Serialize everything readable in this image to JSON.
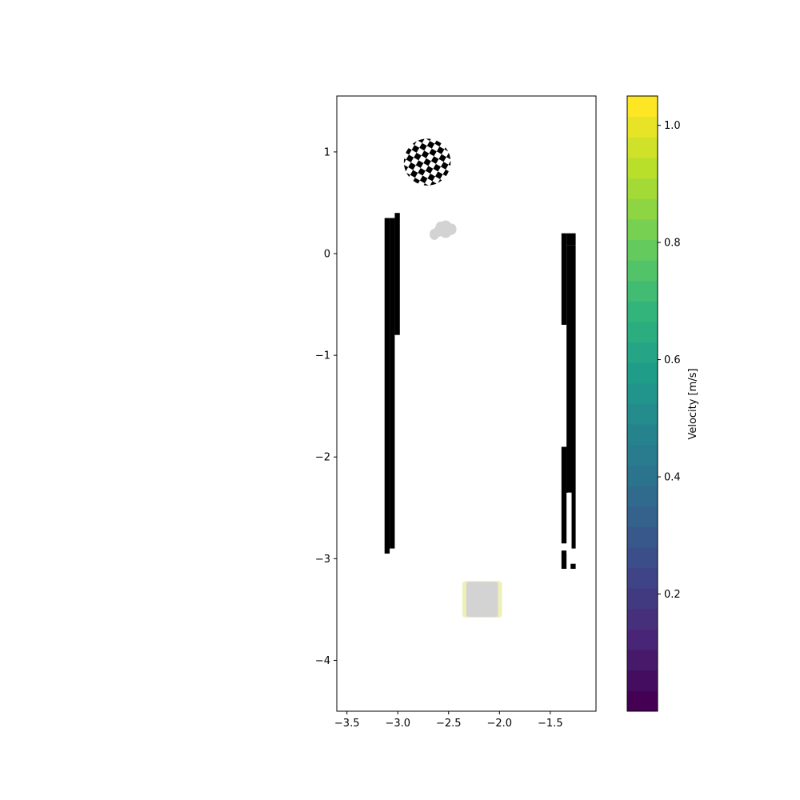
{
  "chart_data": {
    "type": "scatter",
    "title": "",
    "xlabel": "",
    "ylabel": "",
    "xlim": [
      -3.6,
      -1.05
    ],
    "ylim": [
      -4.5,
      1.55
    ],
    "grid": false,
    "x_ticks": [
      -3.5,
      -3.0,
      -2.5,
      -2.0,
      -1.5
    ],
    "x_tick_labels": [
      "−3.5",
      "−3.0",
      "−2.5",
      "−2.0",
      "−1.5"
    ],
    "y_ticks": [
      1,
      0,
      -1,
      -2,
      -3,
      -4
    ],
    "y_tick_labels": [
      "1",
      "0",
      "−1",
      "−2",
      "−3",
      "−4"
    ],
    "occupancy_obstacles": [
      {
        "x": [
          -3.13,
          -3.08
        ],
        "y": [
          -2.95,
          0.35
        ]
      },
      {
        "x": [
          -3.08,
          -3.03
        ],
        "y": [
          -2.9,
          0.35
        ]
      },
      {
        "x": [
          -3.03,
          -2.98
        ],
        "y": [
          -0.8,
          0.4
        ]
      },
      {
        "x": [
          -1.39,
          -1.34
        ],
        "y": [
          -0.7,
          0.2
        ]
      },
      {
        "x": [
          -1.34,
          -1.25
        ],
        "y": [
          0.08,
          0.2
        ]
      },
      {
        "x": [
          -1.34,
          -1.25
        ],
        "y": [
          -0.7,
          0.08
        ]
      },
      {
        "x": [
          -1.34,
          -1.29
        ],
        "y": [
          -2.35,
          -0.7
        ]
      },
      {
        "x": [
          -1.29,
          -1.25
        ],
        "y": [
          -2.9,
          -0.7
        ]
      },
      {
        "x": [
          -1.39,
          -1.34
        ],
        "y": [
          -2.85,
          -1.9
        ]
      },
      {
        "x": [
          -1.34,
          -1.32
        ],
        "y": [
          -2.35,
          -1.9
        ]
      },
      {
        "x": [
          -1.39,
          -1.34
        ],
        "y": [
          -3.1,
          -2.92
        ]
      },
      {
        "x": [
          -1.3,
          -1.25
        ],
        "y": [
          -3.1,
          -3.05
        ]
      }
    ],
    "checkerboard_marker": {
      "center": [
        -2.71,
        0.9
      ],
      "radius": 0.23
    },
    "robot_cluster": [
      {
        "x": -2.58,
        "y": 0.26
      },
      {
        "x": -2.53,
        "y": 0.24
      },
      {
        "x": -2.47,
        "y": 0.24
      },
      {
        "x": -2.6,
        "y": 0.22
      },
      {
        "x": -2.64,
        "y": 0.19
      }
    ],
    "vehicle": {
      "x": [
        -2.35,
        -1.99
      ],
      "y": [
        -3.58,
        -3.22
      ],
      "velocity": 1.02
    },
    "colorbar": {
      "label": "Velocity [m/s]",
      "colormap": "viridis",
      "vmin": 0.0,
      "vmax": 1.05,
      "levels": 30,
      "ticks": [
        0.2,
        0.4,
        0.6,
        0.8,
        1.0
      ],
      "tick_labels": [
        "0.2",
        "0.4",
        "0.6",
        "0.8",
        "1.0"
      ]
    }
  }
}
